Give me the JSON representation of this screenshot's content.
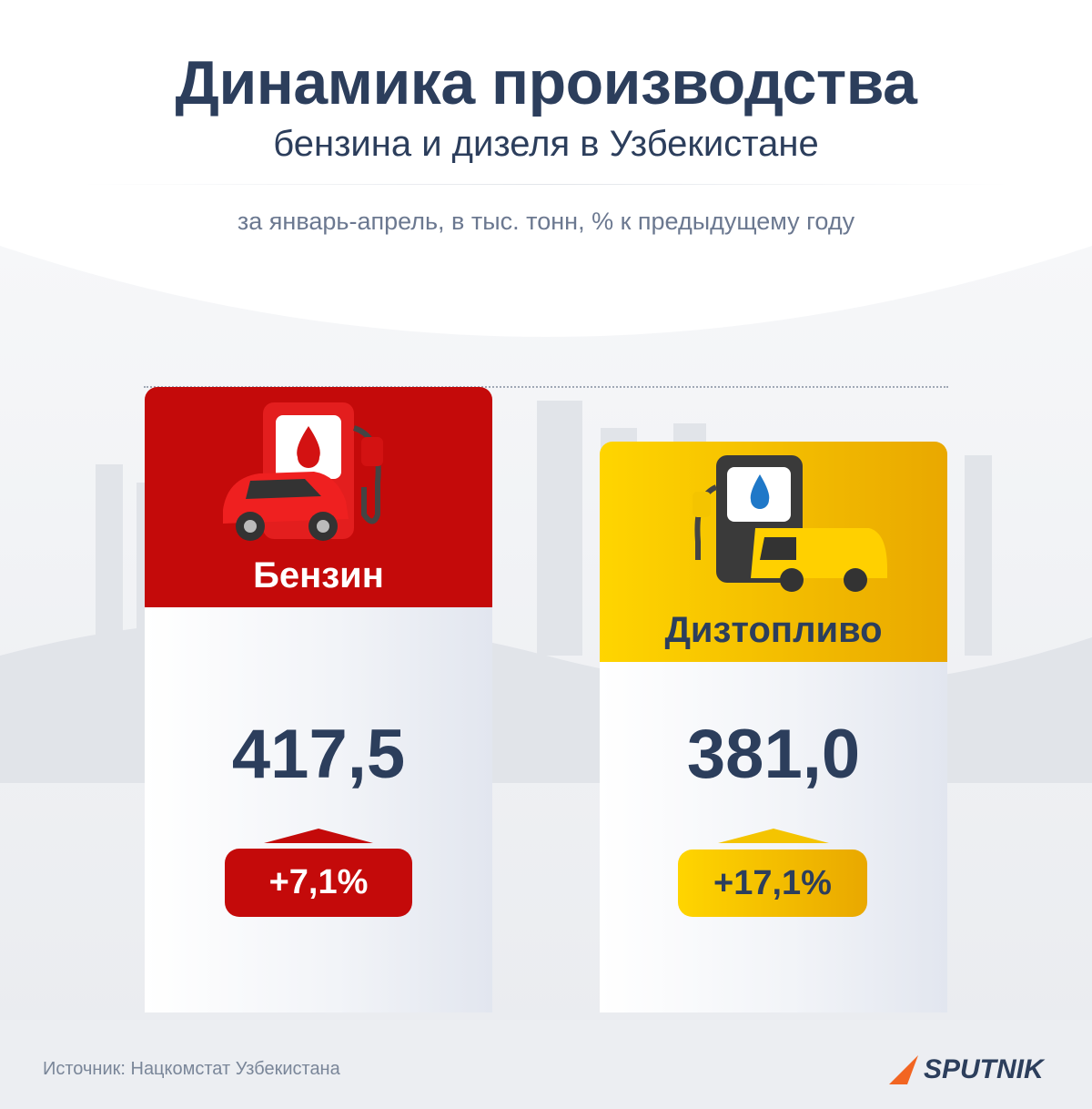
{
  "header": {
    "title": "Динамика производства",
    "subtitle": "бензина и дизеля в Узбекистане",
    "note": "за январь-апрель, в тыс. тонн, % к предыдущему году"
  },
  "cards": [
    {
      "label": "Бензин",
      "value": "417,5",
      "change": "+7,1%"
    },
    {
      "label": "Дизтопливо",
      "value": "381,0",
      "change": "+17,1%"
    }
  ],
  "footer": {
    "source": "Источник: Нацкомстат Узбекистана",
    "logo": "SPUTNIK"
  }
}
